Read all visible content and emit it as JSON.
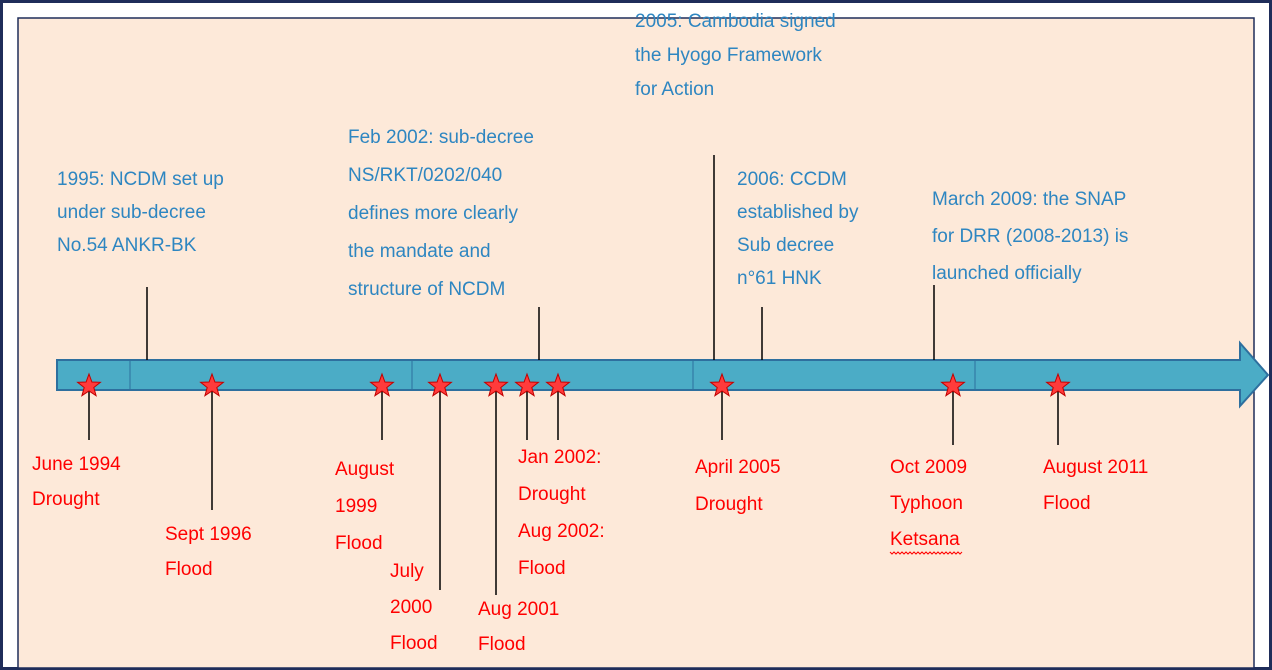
{
  "events_above": [
    {
      "lines": [
        "1995: NCDM set up",
        "under sub-decree",
        "No.54 ANKR-BK"
      ]
    },
    {
      "lines": [
        "Feb 2002: sub-decree",
        "NS/RKT/0202/040",
        "defines more clearly",
        "the mandate and",
        "structure of NCDM"
      ]
    },
    {
      "lines": [
        "2005: Cambodia signed",
        "the Hyogo Framework",
        "for Action"
      ]
    },
    {
      "lines": [
        "2006:  CCDM",
        "established by",
        "Sub decree",
        "n°61 HNK"
      ]
    },
    {
      "lines": [
        "March 2009: the SNAP",
        "for DRR (2008-2013) is",
        "launched officially"
      ]
    }
  ],
  "events_below": [
    {
      "lines": [
        "June 1994",
        "Drought"
      ]
    },
    {
      "lines": [
        "Sept 1996",
        "Flood"
      ]
    },
    {
      "lines": [
        "August",
        "1999",
        "Flood"
      ]
    },
    {
      "lines": [
        "July",
        "2000",
        "Flood"
      ]
    },
    {
      "lines": [
        "Aug 2001",
        "Flood"
      ]
    },
    {
      "lines": [
        "Jan 2002:",
        "Drought",
        "Aug 2002:",
        "Flood"
      ]
    },
    {
      "lines": [
        "April 2005",
        "Drought"
      ]
    },
    {
      "lines": [
        "Oct 2009",
        "Typhoon",
        "Ketsana"
      ]
    },
    {
      "lines": [
        "August 2011",
        "Flood"
      ]
    }
  ]
}
